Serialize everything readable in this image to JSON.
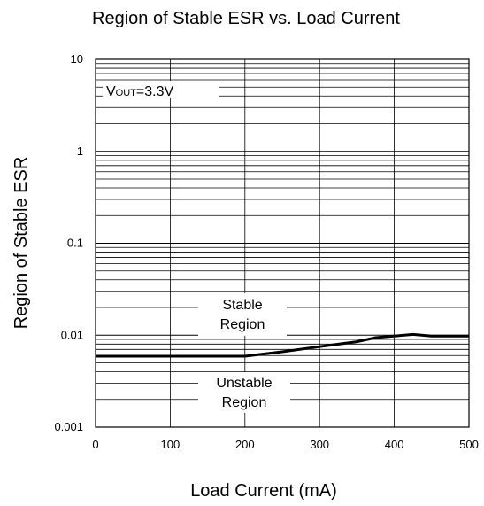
{
  "chart_data": {
    "type": "line",
    "title": "Region of Stable ESR vs. Load Current",
    "xlabel": "Load Current (mA)",
    "ylabel": "Region of Stable ESR",
    "xlim": [
      0,
      500
    ],
    "ylim": [
      0.001,
      10
    ],
    "yscale": "log",
    "grid": true,
    "xticks": [
      0,
      100,
      200,
      300,
      400,
      500
    ],
    "xtick_labels": [
      "0",
      "100",
      "200",
      "300",
      "400",
      "500"
    ],
    "yticks": [
      0.001,
      0.01,
      0.1,
      1,
      10
    ],
    "ytick_labels": [
      "0.001",
      "0.01",
      "0.1",
      "1",
      "10"
    ],
    "series": [
      {
        "x": [
          0,
          200,
          250,
          300,
          350,
          375,
          400,
          425,
          450,
          500
        ],
        "y": [
          0.0059,
          0.0059,
          0.0066,
          0.0075,
          0.0085,
          0.0094,
          0.0098,
          0.0102,
          0.0098,
          0.0098
        ]
      }
    ],
    "annotations": {
      "vout_main": "V",
      "vout_sub": "OUT",
      "vout_value": "=3.3V",
      "stable_line1": "Stable",
      "stable_line2": "Region",
      "unstable_line1": "Unstable",
      "unstable_line2": "Region"
    }
  }
}
